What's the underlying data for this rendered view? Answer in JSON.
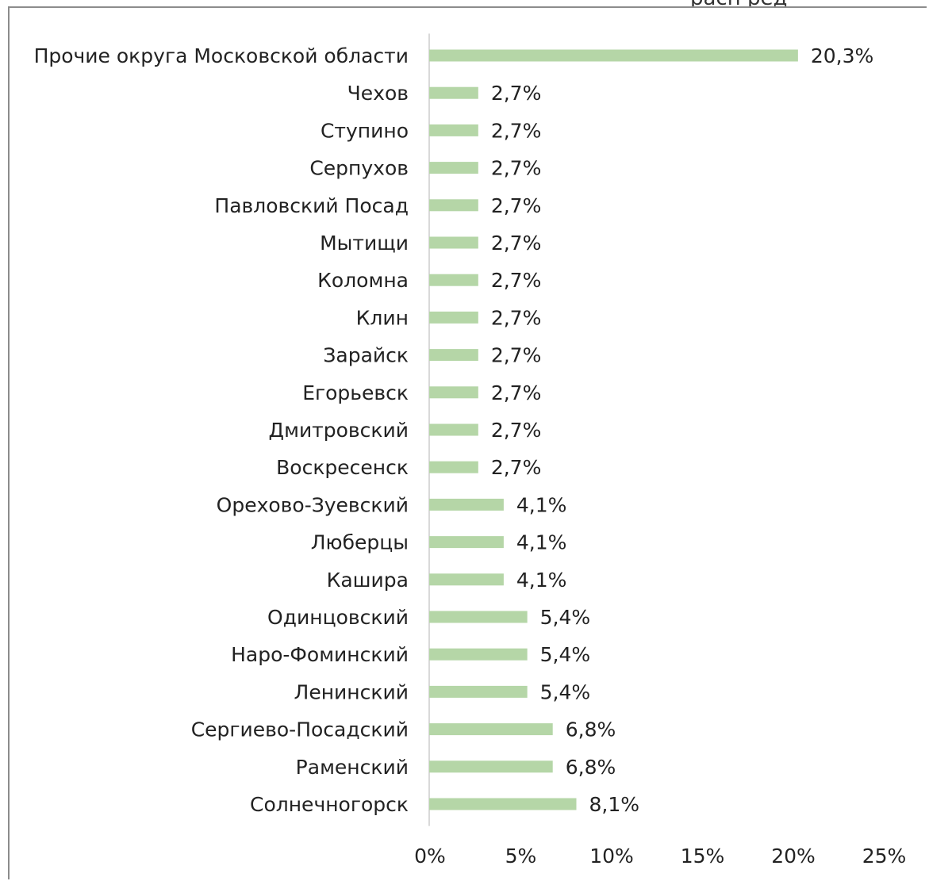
{
  "header_fragment": "расп ред",
  "chart_data": {
    "type": "bar",
    "orientation": "horizontal",
    "categories": [
      "Прочие округа Московской области",
      "Чехов",
      "Ступино",
      "Серпухов",
      "Павловский Посад",
      "Мытищи",
      "Коломна",
      "Клин",
      "Зарайск",
      "Егорьевск",
      "Дмитровский",
      "Воскресенск",
      "Орехово-Зуевский",
      "Люберцы",
      "Кашира",
      "Одинцовский",
      "Наро-Фоминский",
      "Ленинский",
      "Сергиево-Посадский",
      "Раменский",
      "Солнечногорск"
    ],
    "values": [
      20.3,
      2.7,
      2.7,
      2.7,
      2.7,
      2.7,
      2.7,
      2.7,
      2.7,
      2.7,
      2.7,
      2.7,
      4.1,
      4.1,
      4.1,
      5.4,
      5.4,
      5.4,
      6.8,
      6.8,
      8.1
    ],
    "data_labels": [
      "20,3%",
      "2,7%",
      "2,7%",
      "2,7%",
      "2,7%",
      "2,7%",
      "2,7%",
      "2,7%",
      "2,7%",
      "2,7%",
      "2,7%",
      "2,7%",
      "4,1%",
      "4,1%",
      "4,1%",
      "5,4%",
      "5,4%",
      "5,4%",
      "6,8%",
      "6,8%",
      "8,1%"
    ],
    "xticks": [
      0,
      5,
      10,
      15,
      20,
      25
    ],
    "xtick_labels": [
      "0%",
      "5%",
      "10%",
      "15%",
      "20%",
      "25%"
    ],
    "xlim": [
      0,
      25
    ],
    "grid": false,
    "bar_color": "#b5d6a7",
    "axis_color": "#d9d9d9",
    "title": "",
    "xlabel": "",
    "ylabel": ""
  }
}
